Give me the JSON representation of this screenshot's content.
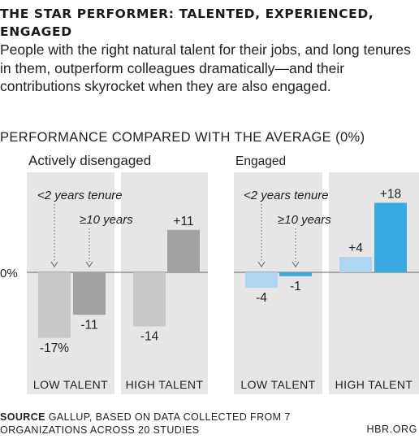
{
  "header": {
    "title": "THE STAR PERFORMER: TALENTED, EXPERIENCED, ENGAGED",
    "subtitle": "People with the right natural talent for their jobs, and long tenures in them, outperform colleagues dramatically—and their contributions skyrocket when they are also engaged."
  },
  "chart_heading": "PERFORMANCE COMPARED WITH THE AVERAGE (0%)",
  "footer": {
    "source_label": "SOURCE",
    "source_text": "GALLUP, BASED ON DATA COLLECTED FROM 7 ORGANIZATIONS ACROSS 20 STUDIES",
    "brand": "HBR.ORG"
  },
  "colors": {
    "panel_bg": "#e6e6e6",
    "disengaged_short": "#c8c8c8",
    "disengaged_long": "#a2a2a4",
    "engaged_short": "#aed6f1",
    "engaged_long": "#39a9e1",
    "arrow": "#777777",
    "text": "#222222"
  },
  "chart_data": {
    "type": "bar",
    "baseline_label": "0%",
    "series": [
      {
        "name": "<2 years tenure"
      },
      {
        "name": "≥10 years"
      }
    ],
    "groups": [
      {
        "title": "Actively disengaged",
        "panels": [
          {
            "category": "LOW TALENT",
            "values": [
              -17,
              -11
            ],
            "labels": [
              "-17%",
              "-11"
            ]
          },
          {
            "category": "HIGH TALENT",
            "values": [
              -14,
              11
            ],
            "labels": [
              "-14",
              "+11"
            ]
          }
        ]
      },
      {
        "title": "Engaged",
        "panels": [
          {
            "category": "LOW TALENT",
            "values": [
              -4,
              -1
            ],
            "labels": [
              "-4",
              "-1"
            ]
          },
          {
            "category": "HIGH TALENT",
            "values": [
              4,
              18
            ],
            "labels": [
              "+4",
              "+18"
            ]
          }
        ]
      }
    ]
  }
}
